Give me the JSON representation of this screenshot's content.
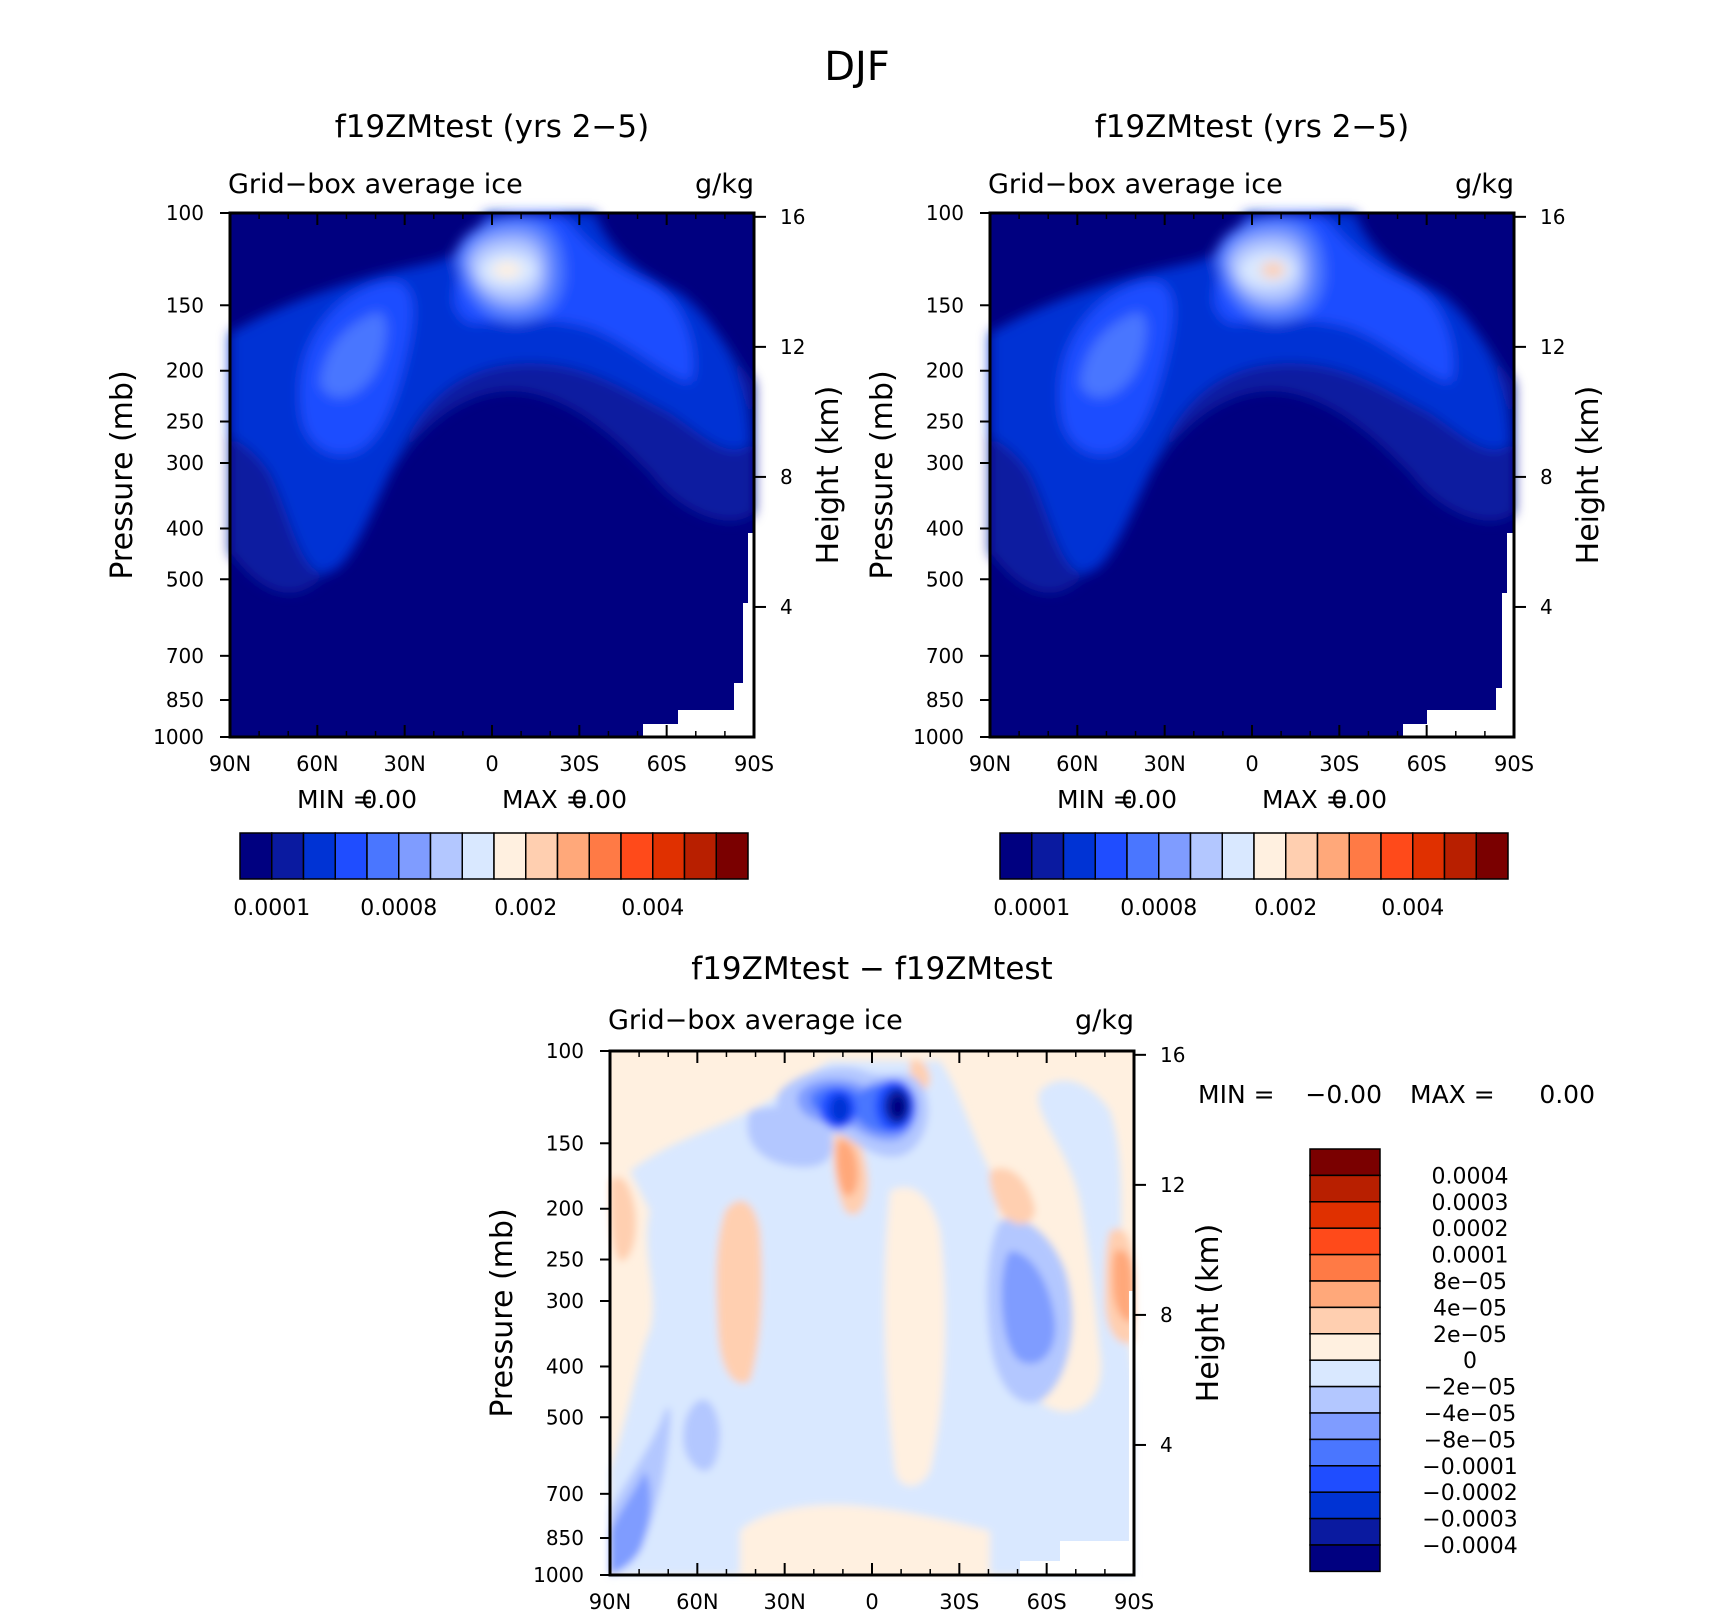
{
  "figure": {
    "title": "DJF"
  },
  "colors": {
    "abs_palette": [
      "#000080",
      "#0a1aa0",
      "#0033d4",
      "#1f4dff",
      "#4a76ff",
      "#7f9cff",
      "#b3c7ff",
      "#d9e8ff",
      "#fff0e0",
      "#ffcfb0",
      "#ffa87a",
      "#ff7a45",
      "#ff4a1a",
      "#e03000",
      "#b81f00",
      "#7a0000"
    ],
    "diff_palette": [
      "#7a0000",
      "#b81f00",
      "#e03000",
      "#ff4a1a",
      "#ff7a45",
      "#ffa87a",
      "#ffcfb0",
      "#fff0e0",
      "#d9e8ff",
      "#b3c7ff",
      "#7f9cff",
      "#4a76ff",
      "#1f4dff",
      "#0033d4",
      "#0a1aa0",
      "#000080"
    ]
  },
  "chart_data": [
    {
      "id": "panel1",
      "type": "heatmap",
      "title": "f19ZMtest (yrs 2−5)",
      "subtitle_left": "Grid−box average ice",
      "subtitle_right": "g/kg",
      "ylabel": "Pressure (mb)",
      "ylabel2": "Height (km)",
      "x_ticks": [
        "90N",
        "60N",
        "30N",
        "0",
        "30S",
        "60S",
        "90S"
      ],
      "y_ticks": [
        "100",
        "150",
        "200",
        "250",
        "300",
        "400",
        "500",
        "700",
        "850",
        "1000"
      ],
      "y2_ticks": [
        "16",
        "12",
        "8",
        "4"
      ],
      "min_label": "MIN =",
      "min_value": "0.00",
      "max_label": "MAX =",
      "max_value": "0.00",
      "colorbar_labels": [
        "0.0001",
        "0.0008",
        "0.002",
        "0.004"
      ]
    },
    {
      "id": "panel2",
      "type": "heatmap",
      "title": "f19ZMtest (yrs 2−5)",
      "subtitle_left": "Grid−box average ice",
      "subtitle_right": "g/kg",
      "ylabel": "Pressure (mb)",
      "ylabel2": "Height (km)",
      "x_ticks": [
        "90N",
        "60N",
        "30N",
        "0",
        "30S",
        "60S",
        "90S"
      ],
      "y_ticks": [
        "100",
        "150",
        "200",
        "250",
        "300",
        "400",
        "500",
        "700",
        "850",
        "1000"
      ],
      "y2_ticks": [
        "16",
        "12",
        "8",
        "4"
      ],
      "min_label": "MIN =",
      "min_value": "0.00",
      "max_label": "MAX =",
      "max_value": "0.00",
      "colorbar_labels": [
        "0.0001",
        "0.0008",
        "0.002",
        "0.004"
      ]
    },
    {
      "id": "panel3",
      "type": "heatmap",
      "title": "f19ZMtest − f19ZMtest",
      "subtitle_left": "Grid−box average ice",
      "subtitle_right": "g/kg",
      "ylabel": "Pressure (mb)",
      "ylabel2": "Height (km)",
      "x_ticks": [
        "90N",
        "60N",
        "30N",
        "0",
        "30S",
        "60S",
        "90S"
      ],
      "y_ticks": [
        "100",
        "150",
        "200",
        "250",
        "300",
        "400",
        "500",
        "700",
        "850",
        "1000"
      ],
      "y2_ticks": [
        "16",
        "12",
        "8",
        "4"
      ],
      "min_label": "MIN =",
      "min_value": "−0.00",
      "max_label": "MAX =",
      "max_value": "0.00",
      "colorbar_labels": [
        "0.0004",
        "0.0003",
        "0.0002",
        "0.0001",
        "8e−05",
        "4e−05",
        "2e−05",
        "0",
        "−2e−05",
        "−4e−05",
        "−8e−05",
        "−0.0001",
        "−0.0002",
        "−0.0003",
        "−0.0004"
      ]
    }
  ]
}
